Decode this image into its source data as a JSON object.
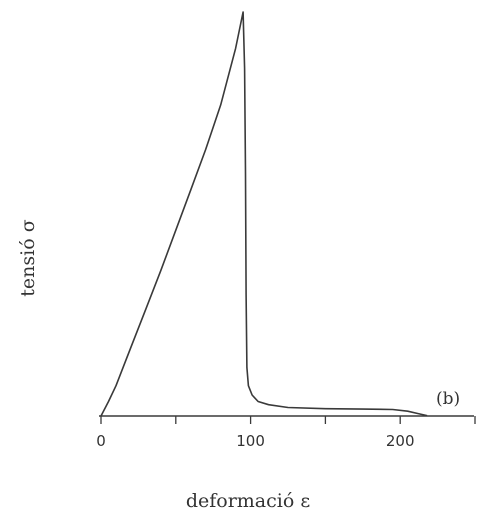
{
  "chart_data": {
    "type": "line",
    "xlabel": "deformació ε",
    "ylabel": "tensió σ",
    "annotation": "(b)",
    "xlim": [
      0,
      250
    ],
    "ylim": [
      0,
      100
    ],
    "xticks": [
      0,
      100,
      200
    ],
    "xtick_labels": [
      "0",
      "100",
      "200"
    ],
    "grid": false,
    "colors": {
      "line": "#3a3a3a",
      "axis": "#3a3a3a",
      "text": "#333333"
    },
    "series": [
      {
        "values": [
          {
            "x": 0,
            "y": 0
          },
          {
            "x": 5,
            "y": 3.6
          },
          {
            "x": 10,
            "y": 7.5
          },
          {
            "x": 20,
            "y": 17
          },
          {
            "x": 30,
            "y": 26.5
          },
          {
            "x": 40,
            "y": 36
          },
          {
            "x": 50,
            "y": 46
          },
          {
            "x": 60,
            "y": 56
          },
          {
            "x": 70,
            "y": 66
          },
          {
            "x": 80,
            "y": 77
          },
          {
            "x": 90,
            "y": 91
          },
          {
            "x": 95,
            "y": 100
          },
          {
            "x": 96,
            "y": 86
          },
          {
            "x": 96.6,
            "y": 60
          },
          {
            "x": 97,
            "y": 30
          },
          {
            "x": 97.5,
            "y": 12
          },
          {
            "x": 98.5,
            "y": 7.5
          },
          {
            "x": 101,
            "y": 5.2
          },
          {
            "x": 105,
            "y": 3.6
          },
          {
            "x": 112,
            "y": 2.8
          },
          {
            "x": 125,
            "y": 2.1
          },
          {
            "x": 150,
            "y": 1.8
          },
          {
            "x": 175,
            "y": 1.7
          },
          {
            "x": 195,
            "y": 1.6
          },
          {
            "x": 205,
            "y": 1.2
          },
          {
            "x": 212,
            "y": 0.6
          },
          {
            "x": 218,
            "y": 0.1
          }
        ]
      }
    ]
  }
}
